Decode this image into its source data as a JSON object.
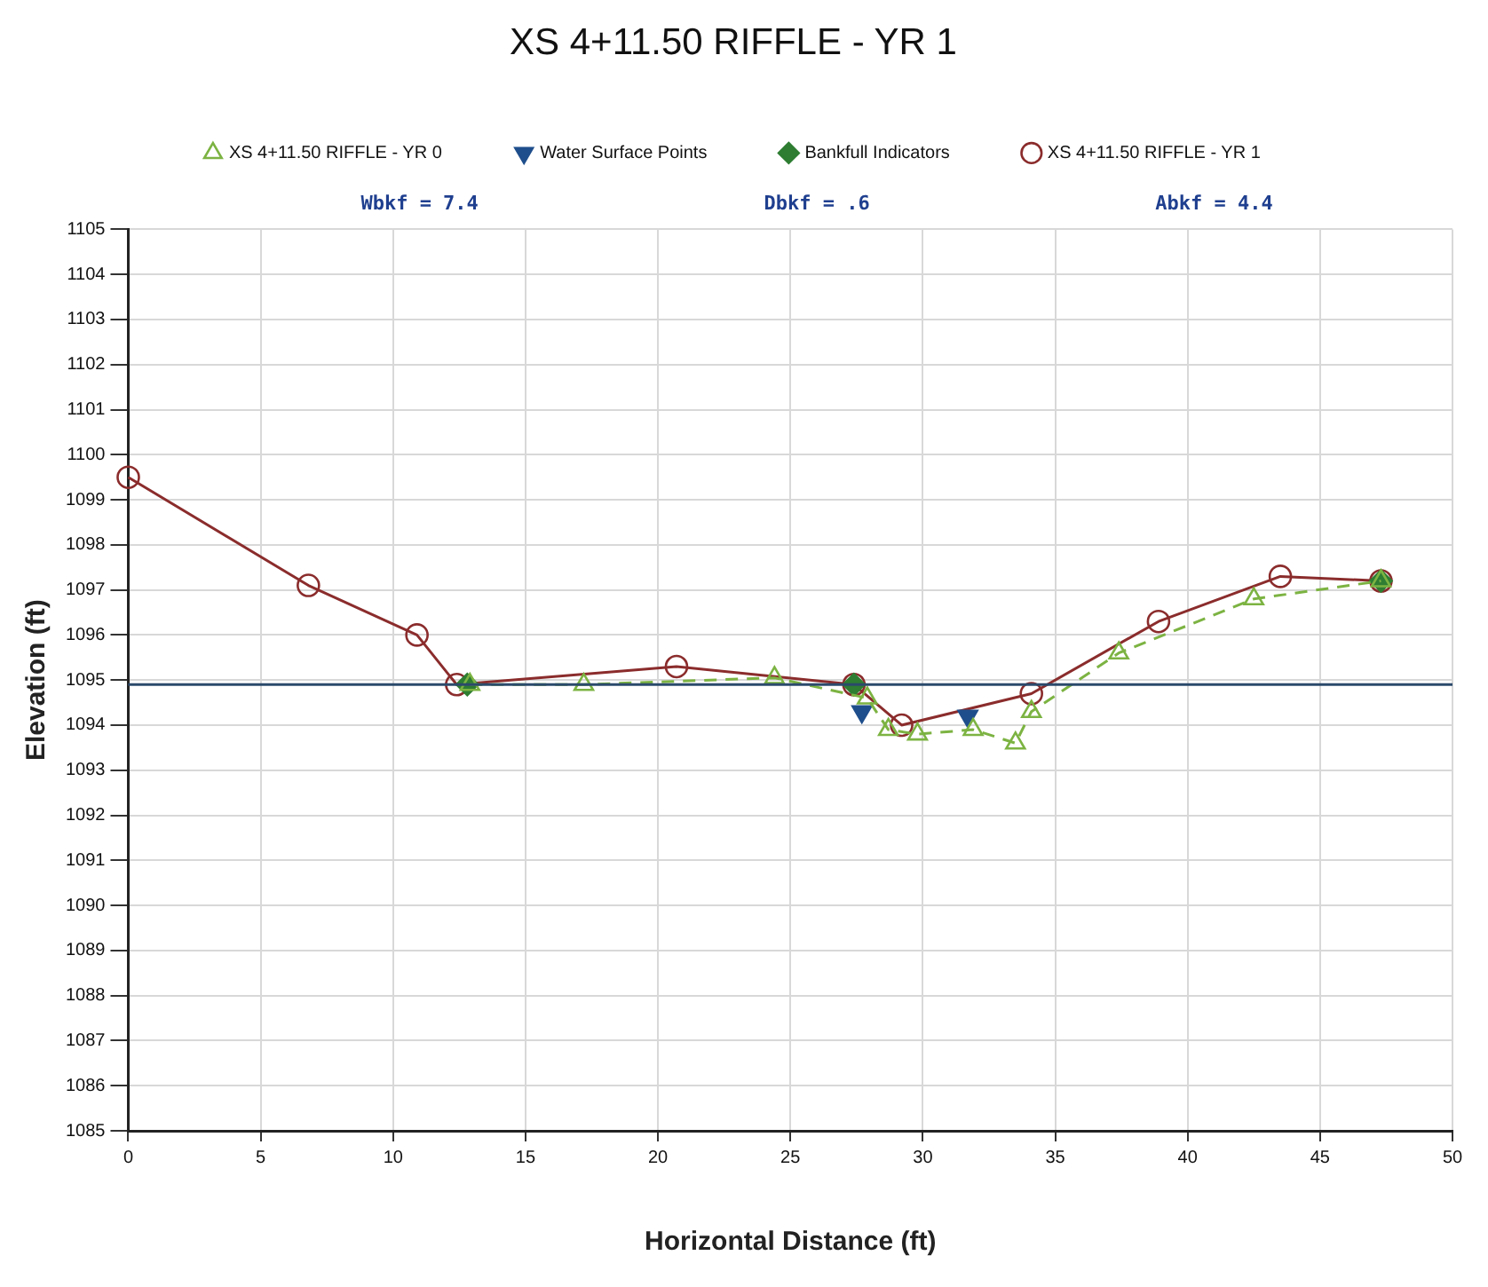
{
  "chart_data": {
    "type": "line",
    "title": "XS 4+11.50 RIFFLE - YR 1",
    "xlabel": "Horizontal Distance (ft)",
    "ylabel": "Elevation (ft)",
    "xlim": [
      0,
      50
    ],
    "xticks": [
      0,
      5,
      10,
      15,
      20,
      25,
      30,
      35,
      40,
      45,
      50
    ],
    "ylim": [
      1085,
      1105
    ],
    "yticks": [
      1085,
      1086,
      1087,
      1088,
      1089,
      1090,
      1091,
      1092,
      1093,
      1094,
      1095,
      1096,
      1097,
      1098,
      1099,
      1100,
      1101,
      1102,
      1103,
      1104,
      1105
    ],
    "grid": true,
    "legend": "top",
    "series": [
      {
        "name": "XS 4+11.50 RIFFLE - YR 1",
        "type": "line",
        "color": "#8b2c2c",
        "marker": "circle",
        "line_style": "solid",
        "x": [
          0,
          6.8,
          10.9,
          12.4,
          20.7,
          27.4,
          29.2,
          34.1,
          38.9,
          43.5,
          47.3
        ],
        "values": [
          1099.5,
          1097.1,
          1096.0,
          1094.9,
          1095.3,
          1094.9,
          1094.0,
          1094.7,
          1096.3,
          1097.3,
          1097.2
        ]
      },
      {
        "name": "Bankfull Indicators",
        "type": "scatter",
        "color": "#2e7d32",
        "marker": "diamond",
        "x": [
          12.8,
          27.4,
          47.3
        ],
        "values": [
          1094.9,
          1094.9,
          1097.2
        ]
      },
      {
        "name": "Water Surface Points",
        "type": "scatter",
        "color": "#1f4e8c",
        "marker": "triangle",
        "x": [
          27.7,
          31.7
        ],
        "values": [
          1094.3,
          1094.2
        ]
      },
      {
        "name": "XS 4+11.50 RIFFLE - YR 0",
        "type": "line",
        "color": "#7cb342",
        "marker": "triangle",
        "line_style": "dashed",
        "x": [
          12.9,
          17.2,
          24.4,
          27.9,
          28.7,
          29.8,
          31.9,
          33.5,
          34.1,
          37.4,
          42.5,
          47.3
        ],
        "values": [
          1094.9,
          1094.9,
          1095.05,
          1094.6,
          1093.9,
          1093.8,
          1093.9,
          1093.6,
          1094.3,
          1095.6,
          1096.8,
          1097.2
        ]
      }
    ],
    "ref_lines": [
      {
        "axis": "y",
        "value": 1094.9,
        "color": "#2b4a6b"
      }
    ],
    "annotations": [
      "Wbkf = 7.4",
      "Dbkf = .6",
      "Abkf = 4.4"
    ]
  }
}
